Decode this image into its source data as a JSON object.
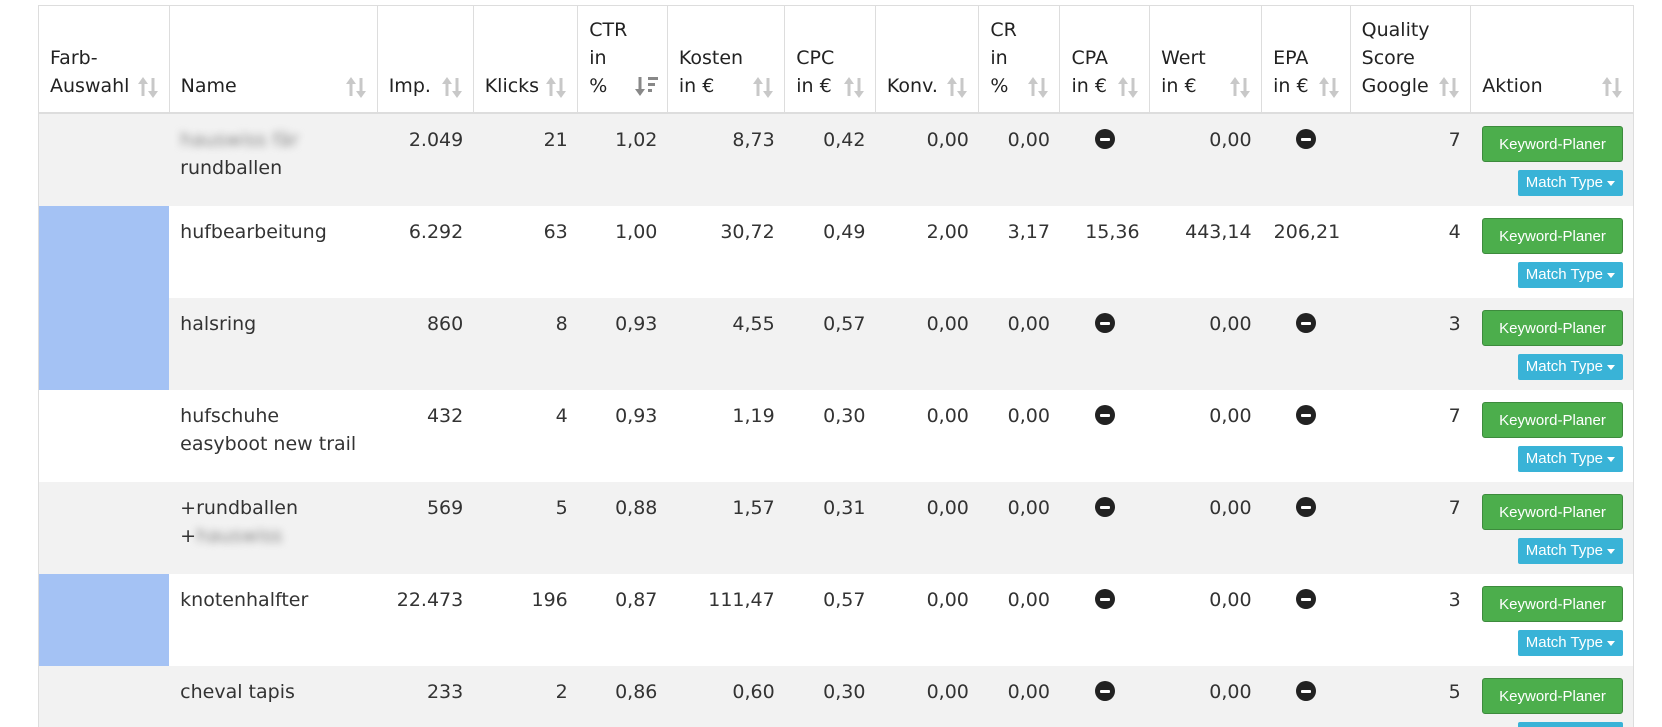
{
  "columns": [
    {
      "key": "farb",
      "label": "Farb-\nAuswahl",
      "active": false
    },
    {
      "key": "name",
      "label": "Name",
      "active": false
    },
    {
      "key": "imp",
      "label": "Imp.",
      "active": false
    },
    {
      "key": "klicks",
      "label": "Klicks",
      "active": false
    },
    {
      "key": "ctr",
      "label": "CTR\nin\n%",
      "active": true
    },
    {
      "key": "kosten",
      "label": "Kosten\nin €",
      "active": false
    },
    {
      "key": "cpc",
      "label": "CPC\nin €",
      "active": false
    },
    {
      "key": "konv",
      "label": "Konv.",
      "active": false
    },
    {
      "key": "cr",
      "label": "CR\nin\n%",
      "active": false
    },
    {
      "key": "cpa",
      "label": "CPA\nin €",
      "active": false
    },
    {
      "key": "wert",
      "label": "Wert\nin €",
      "active": false
    },
    {
      "key": "epa",
      "label": "EPA\nin €",
      "active": false
    },
    {
      "key": "qs",
      "label": "Quality\nScore\nGoogle",
      "active": false
    },
    {
      "key": "aktion",
      "label": "Aktion",
      "active": false
    }
  ],
  "actions": {
    "keyword_planer": "Keyword-Planer",
    "match_type": "Match Type"
  },
  "colors": {
    "swatch": "#a4c2f4",
    "row_alt": "#f2f2f2",
    "green": "#4cae4c",
    "blue": "#39b3d7"
  },
  "rows": [
    {
      "color": null,
      "name_blur": "hauswiss fär",
      "name": "rundballen",
      "imp": "2.049",
      "klicks": "21",
      "ctr": "1,02",
      "kosten": "8,73",
      "cpc": "0,42",
      "konv": "0,00",
      "cr": "0,00",
      "cpa": null,
      "wert": "0,00",
      "epa": null,
      "qs": "7"
    },
    {
      "color": "#a4c2f4",
      "name": "hufbearbeitung",
      "imp": "6.292",
      "klicks": "63",
      "ctr": "1,00",
      "kosten": "30,72",
      "cpc": "0,49",
      "konv": "2,00",
      "cr": "3,17",
      "cpa": "15,36",
      "wert": "443,14",
      "epa": "206,21",
      "qs": "4"
    },
    {
      "color": "#a4c2f4",
      "name": "halsring",
      "imp": "860",
      "klicks": "8",
      "ctr": "0,93",
      "kosten": "4,55",
      "cpc": "0,57",
      "konv": "0,00",
      "cr": "0,00",
      "cpa": null,
      "wert": "0,00",
      "epa": null,
      "qs": "3"
    },
    {
      "color": null,
      "name": "hufschuhe easyboot new trail",
      "imp": "432",
      "klicks": "4",
      "ctr": "0,93",
      "kosten": "1,19",
      "cpc": "0,30",
      "konv": "0,00",
      "cr": "0,00",
      "cpa": null,
      "wert": "0,00",
      "epa": null,
      "qs": "7"
    },
    {
      "color": null,
      "name": "+rundballen",
      "name2": "+",
      "name2_blur": "hauswiss",
      "imp": "569",
      "klicks": "5",
      "ctr": "0,88",
      "kosten": "1,57",
      "cpc": "0,31",
      "konv": "0,00",
      "cr": "0,00",
      "cpa": null,
      "wert": "0,00",
      "epa": null,
      "qs": "7"
    },
    {
      "color": "#a4c2f4",
      "name": "knotenhalfter",
      "imp": "22.473",
      "klicks": "196",
      "ctr": "0,87",
      "kosten": "111,47",
      "cpc": "0,57",
      "konv": "0,00",
      "cr": "0,00",
      "cpa": null,
      "wert": "0,00",
      "epa": null,
      "qs": "3"
    },
    {
      "color": null,
      "name": "cheval tapis",
      "imp": "233",
      "klicks": "2",
      "ctr": "0,86",
      "kosten": "0,60",
      "cpc": "0,30",
      "konv": "0,00",
      "cr": "0,00",
      "cpa": null,
      "wert": "0,00",
      "epa": null,
      "qs": "5"
    }
  ]
}
